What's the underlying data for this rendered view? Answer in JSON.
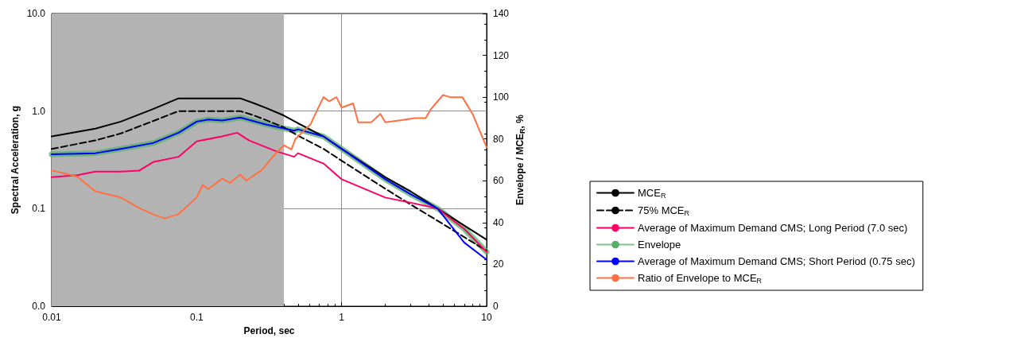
{
  "chart_data": {
    "type": "line",
    "xlabel": "Period, sec",
    "ylabel": "Spectral Acceleration, g",
    "y2label": "Envelope / MCE$_{R}$, %",
    "log": "xy",
    "grid": true,
    "legend": "right",
    "marker": "none",
    "xlim": [
      0.01,
      10
    ],
    "xticks": [
      0.01,
      0.1,
      1,
      10
    ],
    "ylim": [
      0.01,
      10
    ],
    "yticks": [
      {
        "value": 0.01,
        "label": "0.0"
      },
      0.1,
      {
        "value": 1,
        "label": "1.0"
      },
      {
        "value": 10,
        "label": "10.0"
      }
    ],
    "y2lim": [
      0,
      140
    ],
    "y2ticks": [
      0,
      20,
      40,
      60,
      80,
      100,
      120,
      140
    ],
    "bands": [
      {
        "axis": "x",
        "from": 0.01,
        "to": 0.4,
        "color": "#b3b3b3"
      }
    ],
    "series": [
      {
        "name": "MCE$_{R}$",
        "color": "#000000",
        "line_style": "solid",
        "x": [
          0.01,
          0.02,
          0.03,
          0.05,
          0.075,
          0.2,
          0.25,
          0.3,
          0.4,
          0.5,
          0.75,
          1,
          2,
          3,
          4.6,
          10
        ],
        "values": [
          0.55,
          0.66,
          0.78,
          1.05,
          1.35,
          1.35,
          1.2,
          1.08,
          0.9,
          0.75,
          0.55,
          0.41,
          0.21,
          0.15,
          0.1,
          0.048
        ]
      },
      {
        "name": "75% MCE$_{R}$",
        "color": "#000000",
        "line_style": "dashed",
        "x": [
          0.01,
          0.02,
          0.03,
          0.05,
          0.075,
          0.2,
          0.25,
          0.3,
          0.4,
          0.5,
          0.75,
          1,
          2,
          3,
          4.6,
          10
        ],
        "values": [
          0.41,
          0.5,
          0.59,
          0.79,
          1.0,
          1.0,
          0.9,
          0.81,
          0.68,
          0.56,
          0.41,
          0.31,
          0.16,
          0.11,
          0.075,
          0.037
        ]
      },
      {
        "name": "Average of Maximum Demand CMS; Long Period (7.0 sec)",
        "color": "#ff0066",
        "line_style": "solid",
        "x": [
          0.01,
          0.015,
          0.02,
          0.03,
          0.04,
          0.05,
          0.075,
          0.1,
          0.15,
          0.19,
          0.23,
          0.35,
          0.47,
          0.5,
          0.75,
          1,
          2,
          3,
          4.6,
          7,
          10
        ],
        "values": [
          0.21,
          0.22,
          0.24,
          0.24,
          0.245,
          0.3,
          0.34,
          0.49,
          0.55,
          0.6,
          0.5,
          0.39,
          0.34,
          0.37,
          0.29,
          0.2,
          0.13,
          0.115,
          0.1,
          0.062,
          0.036
        ]
      },
      {
        "name": "Envelope",
        "color": "#55b06a",
        "line_style": "solid",
        "x": [
          0.01,
          0.02,
          0.03,
          0.05,
          0.075,
          0.1,
          0.12,
          0.15,
          0.2,
          0.3,
          0.47,
          0.5,
          0.75,
          1,
          2,
          3,
          4.6,
          7,
          10
        ],
        "values": [
          0.36,
          0.37,
          0.41,
          0.47,
          0.6,
          0.78,
          0.82,
          0.8,
          0.86,
          0.73,
          0.63,
          0.65,
          0.55,
          0.41,
          0.2,
          0.14,
          0.1,
          0.062,
          0.036
        ]
      },
      {
        "name": "Average of Maximum Demand CMS; Short Period (0.75 sec)",
        "color": "#0000ff",
        "line_style": "solid",
        "x": [
          0.01,
          0.02,
          0.03,
          0.05,
          0.075,
          0.1,
          0.12,
          0.15,
          0.2,
          0.3,
          0.47,
          0.5,
          0.75,
          1,
          2,
          3,
          4.6,
          7,
          10
        ],
        "values": [
          0.36,
          0.37,
          0.41,
          0.47,
          0.6,
          0.78,
          0.82,
          0.8,
          0.86,
          0.73,
          0.63,
          0.65,
          0.55,
          0.41,
          0.2,
          0.14,
          0.1,
          0.045,
          0.03
        ]
      },
      {
        "name": "Ratio of Envelope to MCE$_{R}$",
        "color": "#ff7040",
        "line_style": "solid",
        "axis": "y2",
        "x": [
          0.01,
          0.015,
          0.02,
          0.03,
          0.04,
          0.05,
          0.06,
          0.075,
          0.1,
          0.11,
          0.12,
          0.15,
          0.17,
          0.2,
          0.22,
          0.28,
          0.35,
          0.4,
          0.45,
          0.48,
          0.61,
          0.68,
          0.75,
          0.82,
          0.92,
          1.0,
          1.2,
          1.3,
          1.6,
          1.85,
          2.0,
          2.6,
          3.2,
          3.8,
          4.1,
          5.0,
          5.6,
          6.8,
          8,
          10
        ],
        "values": [
          65,
          62,
          55,
          52,
          47,
          44,
          42,
          44,
          52,
          58,
          56,
          61,
          59,
          63,
          60,
          65,
          73,
          77,
          75,
          80,
          87,
          94,
          100,
          98,
          100,
          95,
          97,
          88,
          88,
          92,
          88,
          89,
          90,
          90,
          94,
          101,
          100,
          100,
          92,
          76
        ]
      }
    ]
  }
}
